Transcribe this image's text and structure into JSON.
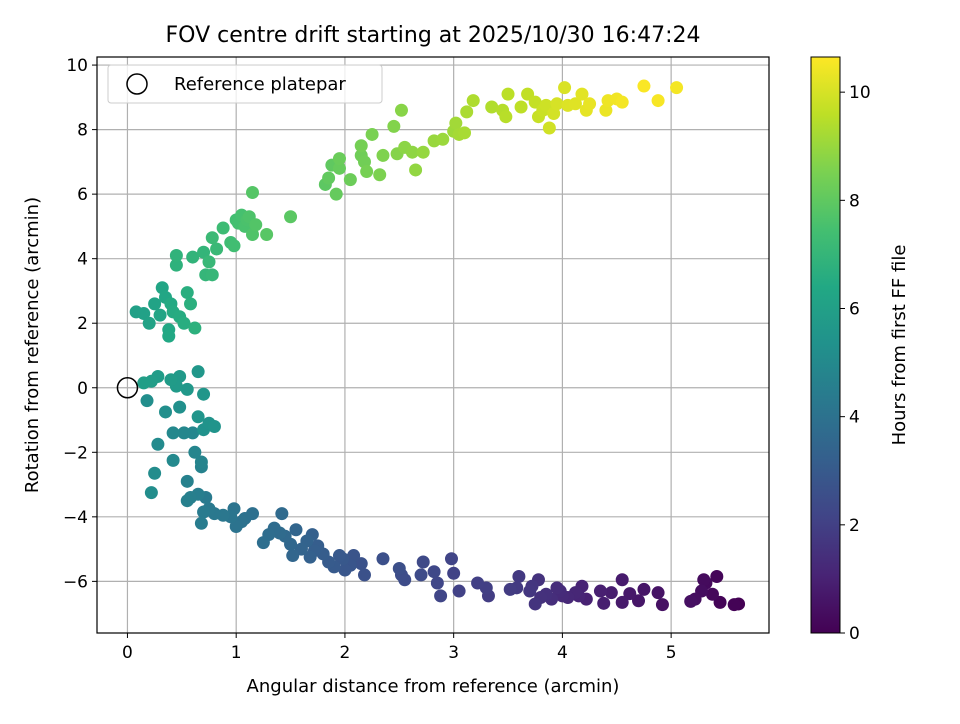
{
  "chart_data": {
    "type": "scatter",
    "title": "FOV centre drift starting at 2025/10/30 16:47:24",
    "xlabel": "Angular distance from reference (arcmin)",
    "ylabel": "Rotation from reference (arcmin)",
    "xlim": [
      -0.28,
      5.9
    ],
    "ylim": [
      -7.6,
      10.25
    ],
    "xticks": [
      0,
      1,
      2,
      3,
      4,
      5
    ],
    "yticks": [
      -6,
      -4,
      -2,
      0,
      2,
      4,
      6,
      8,
      10
    ],
    "xtick_labels": [
      "0",
      "1",
      "2",
      "3",
      "4",
      "5"
    ],
    "ytick_labels": [
      "−6",
      "−4",
      "−2",
      "0",
      "2",
      "4",
      "6",
      "8",
      "10"
    ],
    "grid": true,
    "legend": {
      "position": "top-left",
      "label": "Reference platepar"
    },
    "reference_point": {
      "x": 0,
      "y": 0
    },
    "colorbar": {
      "label": "Hours from first FF file",
      "colormap": "viridis",
      "range": [
        0,
        10.65
      ],
      "ticks": [
        0,
        2,
        4,
        6,
        8,
        10
      ],
      "tick_labels": [
        "0",
        "2",
        "4",
        "6",
        "8",
        "10"
      ]
    },
    "series": [
      {
        "name": "FOV centre",
        "points": [
          [
            5.62,
            -6.7,
            0.0
          ],
          [
            5.58,
            -6.72,
            0.05
          ],
          [
            5.45,
            -6.65,
            0.1
          ],
          [
            5.42,
            -5.85,
            0.15
          ],
          [
            5.38,
            -6.4,
            0.2
          ],
          [
            5.32,
            -6.05,
            0.25
          ],
          [
            5.3,
            -5.95,
            0.3
          ],
          [
            5.28,
            -6.3,
            0.35
          ],
          [
            5.22,
            -6.55,
            0.4
          ],
          [
            5.18,
            -6.62,
            0.45
          ],
          [
            4.92,
            -6.72,
            0.5
          ],
          [
            4.88,
            -6.35,
            0.55
          ],
          [
            4.75,
            -6.25,
            0.6
          ],
          [
            4.7,
            -6.6,
            0.65
          ],
          [
            4.62,
            -6.38,
            0.7
          ],
          [
            4.55,
            -6.65,
            0.75
          ],
          [
            4.55,
            -5.95,
            0.8
          ],
          [
            4.45,
            -6.35,
            0.85
          ],
          [
            4.38,
            -6.68,
            0.9
          ],
          [
            4.35,
            -6.3,
            0.95
          ],
          [
            4.22,
            -6.55,
            1.0
          ],
          [
            4.18,
            -6.15,
            1.05
          ],
          [
            4.15,
            -6.45,
            1.1
          ],
          [
            4.12,
            -6.35,
            1.15
          ],
          [
            4.05,
            -6.5,
            1.2
          ],
          [
            4.0,
            -6.45,
            1.25
          ],
          [
            3.98,
            -6.3,
            1.3
          ],
          [
            3.95,
            -6.2,
            1.35
          ],
          [
            3.9,
            -6.55,
            1.4
          ],
          [
            3.85,
            -6.4,
            1.45
          ],
          [
            3.8,
            -6.5,
            1.5
          ],
          [
            3.78,
            -5.95,
            1.55
          ],
          [
            3.75,
            -6.7,
            1.6
          ],
          [
            3.72,
            -6.15,
            1.65
          ],
          [
            3.7,
            -6.3,
            1.7
          ],
          [
            3.6,
            -5.85,
            1.75
          ],
          [
            3.58,
            -6.2,
            1.8
          ],
          [
            3.52,
            -6.25,
            1.85
          ],
          [
            3.32,
            -6.45,
            1.9
          ],
          [
            3.3,
            -6.2,
            1.95
          ],
          [
            3.22,
            -6.05,
            2.0
          ],
          [
            3.05,
            -6.3,
            2.05
          ],
          [
            3.0,
            -5.75,
            2.1
          ],
          [
            2.98,
            -5.3,
            2.15
          ],
          [
            2.88,
            -6.45,
            2.2
          ],
          [
            2.85,
            -6.05,
            2.25
          ],
          [
            2.82,
            -5.7,
            2.3
          ],
          [
            2.72,
            -5.4,
            2.35
          ],
          [
            2.7,
            -5.8,
            2.4
          ],
          [
            2.55,
            -5.95,
            2.45
          ],
          [
            2.52,
            -5.8,
            2.5
          ],
          [
            2.5,
            -5.6,
            2.55
          ],
          [
            2.35,
            -5.3,
            2.6
          ],
          [
            2.18,
            -5.8,
            2.65
          ],
          [
            2.15,
            -5.45,
            2.7
          ],
          [
            2.08,
            -5.2,
            2.75
          ],
          [
            2.05,
            -5.5,
            2.8
          ],
          [
            2.0,
            -5.65,
            2.85
          ],
          [
            1.98,
            -5.3,
            2.9
          ],
          [
            1.95,
            -5.2,
            2.95
          ],
          [
            1.9,
            -5.55,
            3.0
          ],
          [
            1.85,
            -5.4,
            3.05
          ],
          [
            1.8,
            -5.15,
            3.1
          ],
          [
            1.75,
            -4.9,
            3.15
          ],
          [
            1.72,
            -5.05,
            3.2
          ],
          [
            1.7,
            -4.55,
            3.25
          ],
          [
            1.68,
            -5.25,
            3.3
          ],
          [
            1.65,
            -4.75,
            3.35
          ],
          [
            1.6,
            -5.0,
            3.4
          ],
          [
            1.55,
            -4.4,
            3.45
          ],
          [
            1.52,
            -5.2,
            3.5
          ],
          [
            1.5,
            -4.85,
            3.55
          ],
          [
            1.45,
            -4.6,
            3.6
          ],
          [
            1.42,
            -3.9,
            3.65
          ],
          [
            1.4,
            -4.5,
            3.7
          ],
          [
            1.35,
            -4.35,
            3.75
          ],
          [
            1.3,
            -4.55,
            3.8
          ],
          [
            1.25,
            -4.8,
            3.85
          ],
          [
            1.15,
            -3.9,
            3.9
          ],
          [
            1.08,
            -4.05,
            3.95
          ],
          [
            1.05,
            -4.15,
            4.0
          ],
          [
            1.0,
            -4.3,
            4.05
          ],
          [
            0.98,
            -3.75,
            4.1
          ],
          [
            0.95,
            -4.0,
            4.15
          ],
          [
            0.88,
            -3.95,
            4.2
          ],
          [
            0.8,
            -3.9,
            4.25
          ],
          [
            0.75,
            -3.75,
            4.3
          ],
          [
            0.72,
            -3.4,
            4.35
          ],
          [
            0.7,
            -3.85,
            4.4
          ],
          [
            0.68,
            -4.2,
            4.45
          ],
          [
            0.65,
            -3.3,
            4.5
          ],
          [
            0.58,
            -3.4,
            4.55
          ],
          [
            0.55,
            -3.5,
            4.6
          ],
          [
            0.55,
            -2.9,
            4.65
          ],
          [
            0.68,
            -2.45,
            4.7
          ],
          [
            0.68,
            -2.3,
            4.75
          ],
          [
            0.62,
            -2.0,
            4.8
          ],
          [
            0.6,
            -1.4,
            4.85
          ],
          [
            0.52,
            -1.4,
            4.9
          ],
          [
            0.42,
            -1.4,
            4.95
          ],
          [
            0.42,
            -2.25,
            5.0
          ],
          [
            0.28,
            -1.75,
            5.05
          ],
          [
            0.25,
            -2.65,
            5.1
          ],
          [
            0.22,
            -3.25,
            5.15
          ],
          [
            0.18,
            -0.4,
            5.2
          ],
          [
            0.35,
            -0.75,
            5.25
          ],
          [
            0.48,
            -0.6,
            5.3
          ],
          [
            0.7,
            -1.3,
            5.35
          ],
          [
            0.75,
            -1.1,
            5.4
          ],
          [
            0.8,
            -1.2,
            5.45
          ],
          [
            0.65,
            -0.9,
            5.5
          ],
          [
            0.7,
            -0.2,
            5.55
          ],
          [
            0.65,
            0.5,
            5.6
          ],
          [
            0.55,
            -0.05,
            5.65
          ],
          [
            0.48,
            0.35,
            5.7
          ],
          [
            0.45,
            0.05,
            5.75
          ],
          [
            0.4,
            0.25,
            5.8
          ],
          [
            0.28,
            0.35,
            5.85
          ],
          [
            0.22,
            0.2,
            5.9
          ],
          [
            0.15,
            0.15,
            5.95
          ],
          [
            0.08,
            2.35,
            6.0
          ],
          [
            0.15,
            2.3,
            6.05
          ],
          [
            0.2,
            2.0,
            6.1
          ],
          [
            0.25,
            2.6,
            6.15
          ],
          [
            0.3,
            2.25,
            6.2
          ],
          [
            0.32,
            3.1,
            6.25
          ],
          [
            0.35,
            2.8,
            6.3
          ],
          [
            0.38,
            1.8,
            6.35
          ],
          [
            0.38,
            1.6,
            6.4
          ],
          [
            0.4,
            2.6,
            6.45
          ],
          [
            0.42,
            2.35,
            6.5
          ],
          [
            0.48,
            2.2,
            6.55
          ],
          [
            0.52,
            2.0,
            6.6
          ],
          [
            0.55,
            2.95,
            6.65
          ],
          [
            0.58,
            2.6,
            6.7
          ],
          [
            0.62,
            1.85,
            6.75
          ],
          [
            0.45,
            3.8,
            6.8
          ],
          [
            0.45,
            4.1,
            6.85
          ],
          [
            0.6,
            4.05,
            6.9
          ],
          [
            0.7,
            4.2,
            6.95
          ],
          [
            0.72,
            3.5,
            7.0
          ],
          [
            0.78,
            3.5,
            7.05
          ],
          [
            0.75,
            3.9,
            7.1
          ],
          [
            0.82,
            4.3,
            7.15
          ],
          [
            0.78,
            4.65,
            7.2
          ],
          [
            0.88,
            4.95,
            7.25
          ],
          [
            0.95,
            4.5,
            7.3
          ],
          [
            0.98,
            4.4,
            7.35
          ],
          [
            1.0,
            5.2,
            7.4
          ],
          [
            1.02,
            5.1,
            7.45
          ],
          [
            1.05,
            5.35,
            7.5
          ],
          [
            1.08,
            5.0,
            7.55
          ],
          [
            1.1,
            5.2,
            7.6
          ],
          [
            1.12,
            5.3,
            7.65
          ],
          [
            1.15,
            4.75,
            7.7
          ],
          [
            1.18,
            5.05,
            7.75
          ],
          [
            1.15,
            6.05,
            7.8
          ],
          [
            1.28,
            4.75,
            7.85
          ],
          [
            1.5,
            5.3,
            7.9
          ],
          [
            1.82,
            6.3,
            7.95
          ],
          [
            1.88,
            6.9,
            8.0
          ],
          [
            1.85,
            6.5,
            8.05
          ],
          [
            1.92,
            6.0,
            8.1
          ],
          [
            1.95,
            6.8,
            8.15
          ],
          [
            1.95,
            7.1,
            8.2
          ],
          [
            2.05,
            6.45,
            8.25
          ],
          [
            2.15,
            7.2,
            8.3
          ],
          [
            2.18,
            7.0,
            8.35
          ],
          [
            2.15,
            7.5,
            8.4
          ],
          [
            2.2,
            6.7,
            8.45
          ],
          [
            2.25,
            7.85,
            8.5
          ],
          [
            2.32,
            6.6,
            8.55
          ],
          [
            2.35,
            7.2,
            8.6
          ],
          [
            2.45,
            8.1,
            8.65
          ],
          [
            2.48,
            7.25,
            8.7
          ],
          [
            2.52,
            8.6,
            8.75
          ],
          [
            2.55,
            7.45,
            8.8
          ],
          [
            2.62,
            7.3,
            8.85
          ],
          [
            2.65,
            6.75,
            8.9
          ],
          [
            2.72,
            7.3,
            8.95
          ],
          [
            2.82,
            7.65,
            9.0
          ],
          [
            2.9,
            7.7,
            9.05
          ],
          [
            3.0,
            7.95,
            9.1
          ],
          [
            3.02,
            8.2,
            9.15
          ],
          [
            3.05,
            7.85,
            9.2
          ],
          [
            3.1,
            7.9,
            9.25
          ],
          [
            3.12,
            8.55,
            9.3
          ],
          [
            3.18,
            8.9,
            9.35
          ],
          [
            3.35,
            8.7,
            9.4
          ],
          [
            3.45,
            8.6,
            9.45
          ],
          [
            3.48,
            8.4,
            9.5
          ],
          [
            3.5,
            9.1,
            9.55
          ],
          [
            3.62,
            8.7,
            9.6
          ],
          [
            3.68,
            9.1,
            9.65
          ],
          [
            3.75,
            8.85,
            9.7
          ],
          [
            3.78,
            8.4,
            9.75
          ],
          [
            3.82,
            8.6,
            9.8
          ],
          [
            3.85,
            8.75,
            9.85
          ],
          [
            3.88,
            8.05,
            9.9
          ],
          [
            3.92,
            8.5,
            9.95
          ],
          [
            3.95,
            8.8,
            10.0
          ],
          [
            4.02,
            9.3,
            10.05
          ],
          [
            4.05,
            8.75,
            10.1
          ],
          [
            4.12,
            8.8,
            10.15
          ],
          [
            4.18,
            9.1,
            10.2
          ],
          [
            4.22,
            8.6,
            10.25
          ],
          [
            4.25,
            8.8,
            10.3
          ],
          [
            4.4,
            8.6,
            10.35
          ],
          [
            4.42,
            8.9,
            10.4
          ],
          [
            4.5,
            8.95,
            10.45
          ],
          [
            4.55,
            8.85,
            10.5
          ],
          [
            4.75,
            9.35,
            10.6
          ],
          [
            4.88,
            8.9,
            10.55
          ],
          [
            5.05,
            9.3,
            10.5
          ]
        ]
      }
    ]
  }
}
